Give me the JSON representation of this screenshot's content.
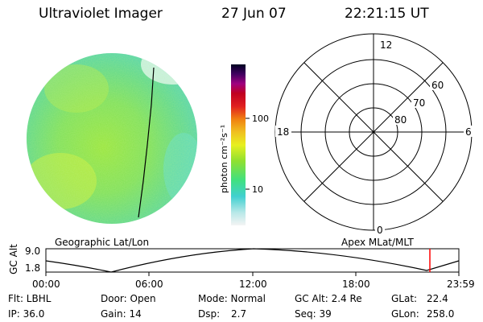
{
  "header": {
    "instrument": "Ultraviolet Imager",
    "date": "27 Jun 07",
    "time": "22:21:15 UT"
  },
  "colorbar": {
    "unit_label": "photon cm⁻²s⁻¹",
    "ticks": [
      "100",
      "10"
    ],
    "scale": "log"
  },
  "polar_plot": {
    "mlt_labels": [
      "12",
      "18",
      "6",
      "0"
    ],
    "lat_labels": [
      "60",
      "70",
      "80"
    ]
  },
  "orbit_panel": {
    "left_title": "Geographic Lat/Lon",
    "right_title": "Apex MLat/MLT",
    "y_axis_label": "GC Alt",
    "y_ticks": [
      "9.0",
      "1.8"
    ],
    "x_ticks": [
      "00:00",
      "06:00",
      "12:00",
      "18:00",
      "23:59"
    ],
    "current_time_marker_color": "#ff0000"
  },
  "info": {
    "flt": "Flt: LBHL",
    "door": "Door: Open",
    "mode": "Mode: Normal",
    "gc_alt": "GC Alt: 2.4 Re",
    "glat_label": "GLat:",
    "glat_value": "22.4",
    "ip": "IP: 36.0",
    "gain": "Gain: 14",
    "dsp_label": "Dsp:",
    "dsp_value": "2.7",
    "seq": "Seq: 39",
    "glon_label": "GLon:",
    "glon_value": "258.0"
  }
}
